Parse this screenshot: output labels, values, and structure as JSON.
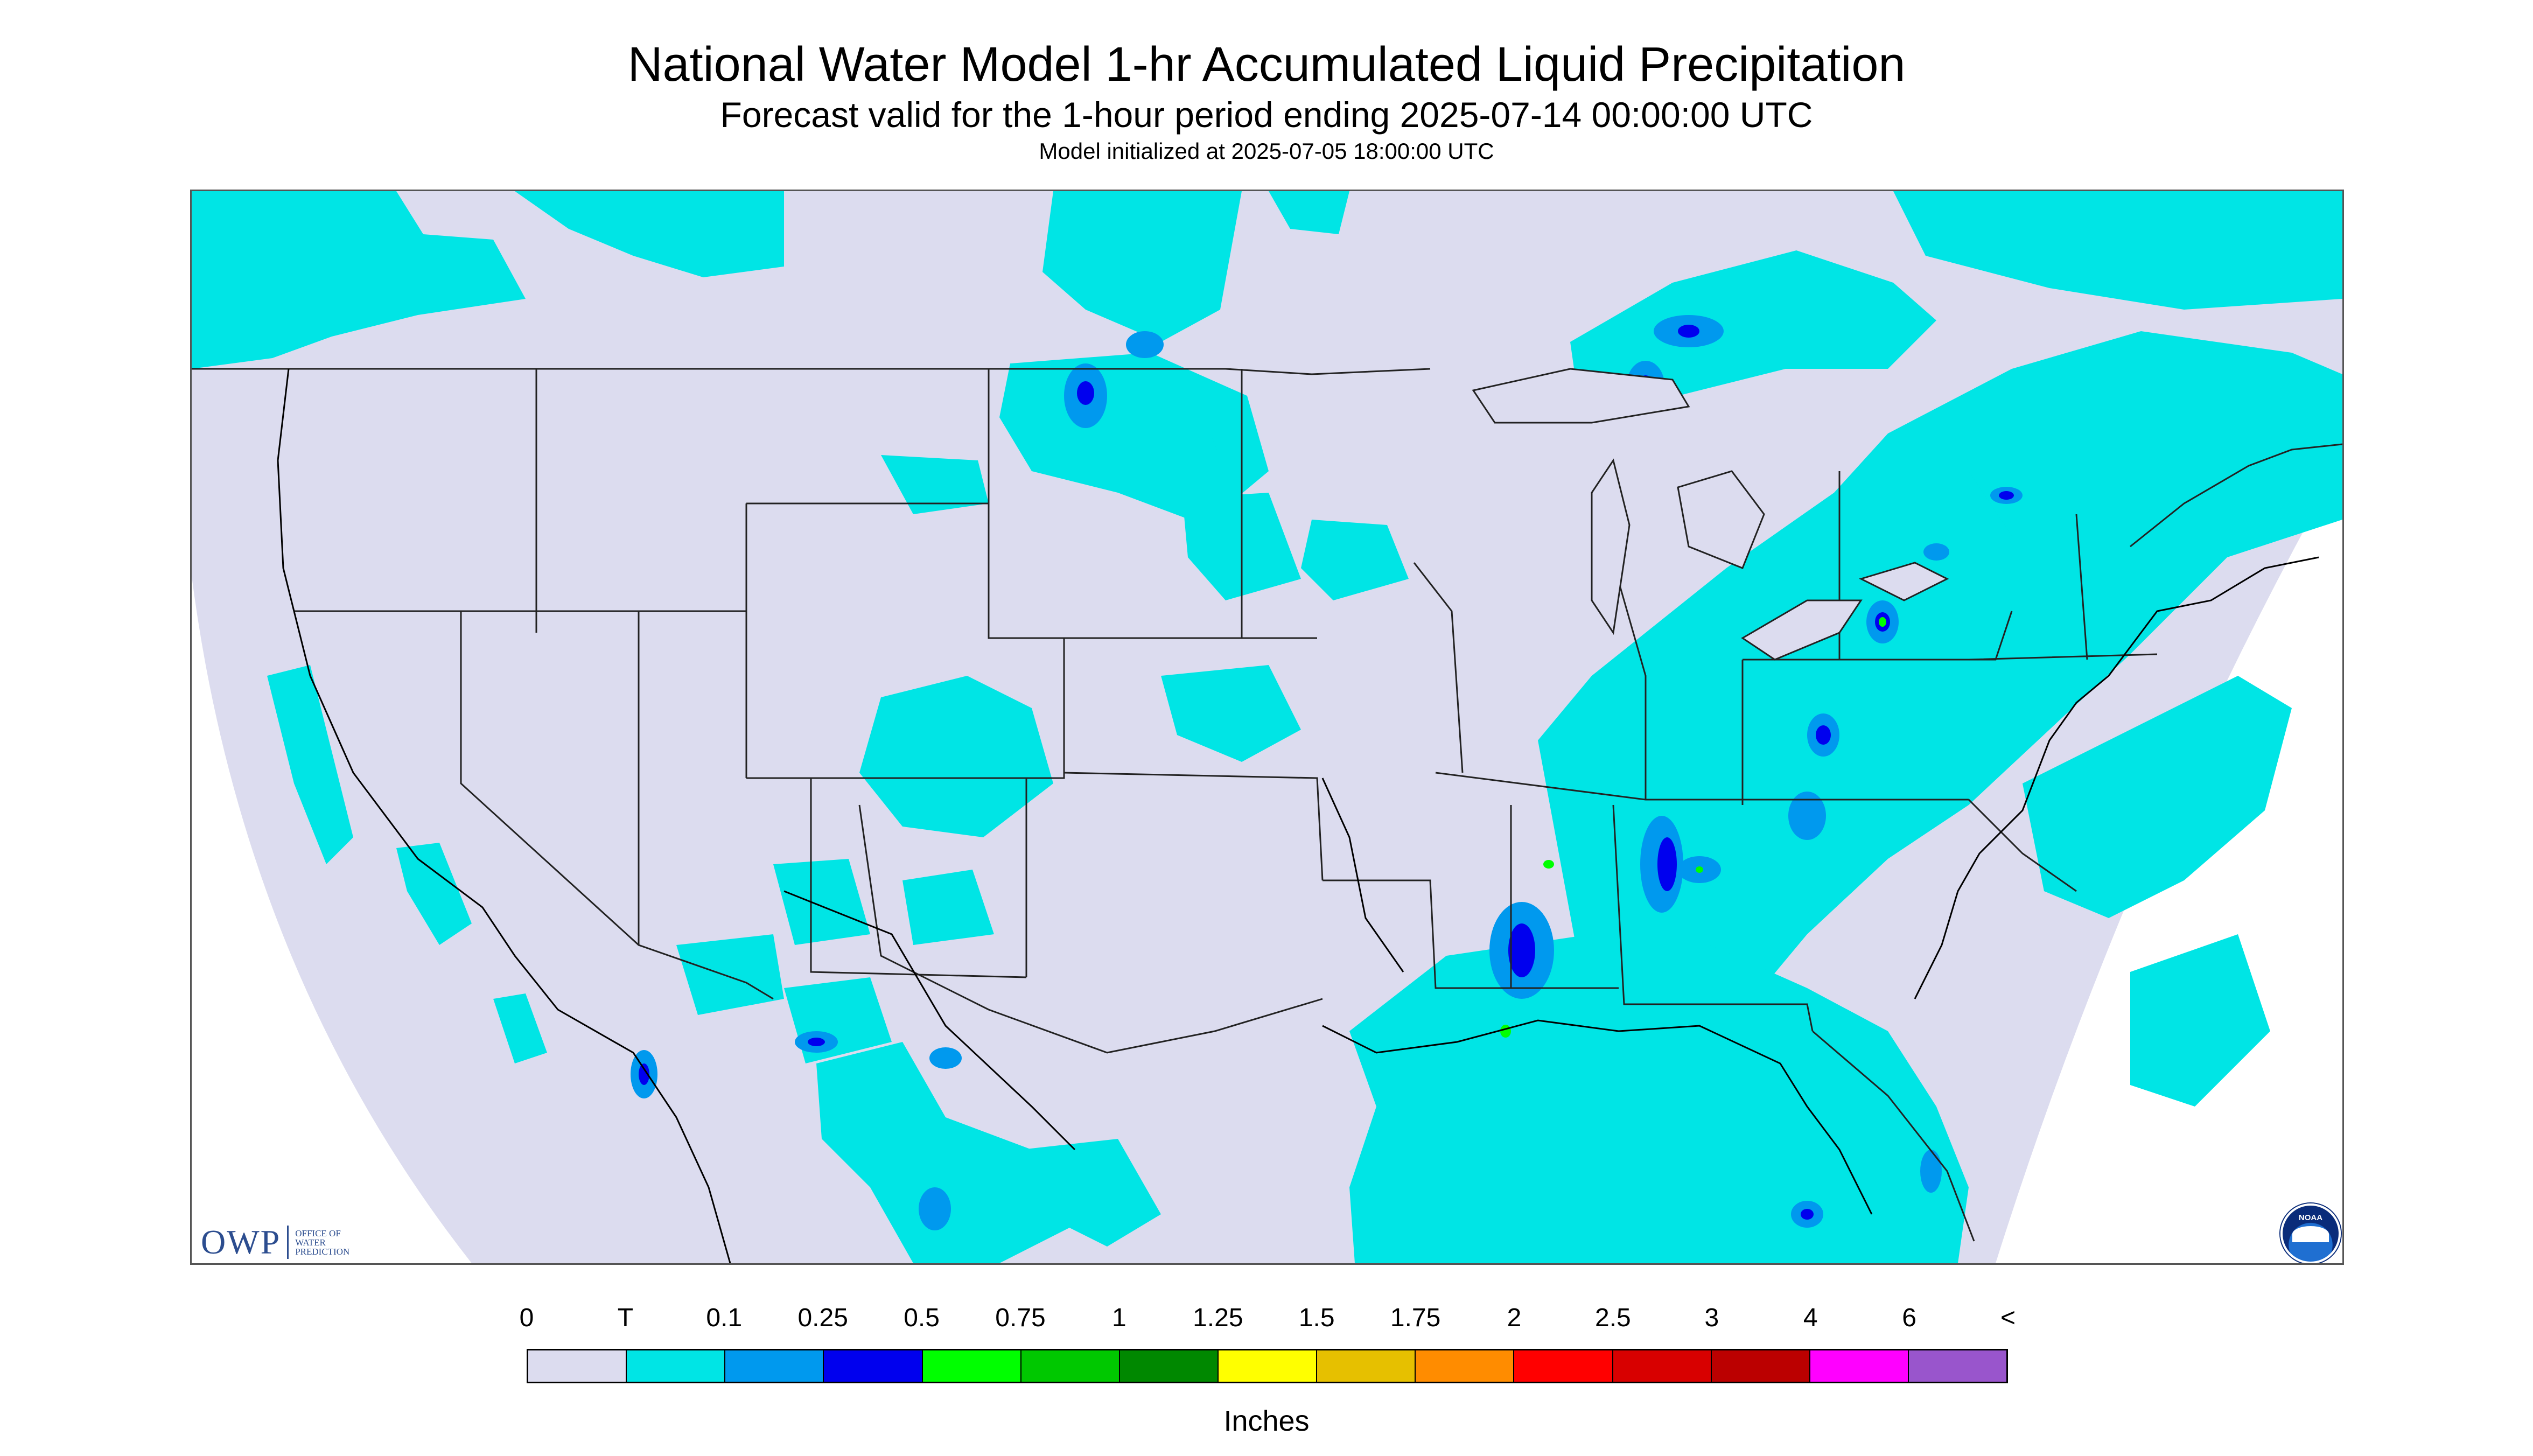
{
  "title": "National Water Model 1-hr Accumulated Liquid Precipitation",
  "subtitle": "Forecast valid for the 1-hour period ending 2025-07-14 00:00:00 UTC",
  "initialized": "Model initialized at 2025-07-05 18:00:00 UTC",
  "map": {
    "background_color": "#dcdcef",
    "outside_color": "#ffffff",
    "boundary_color": "#222222"
  },
  "logos": {
    "owp": {
      "letters": "OWP",
      "line1": "Office of",
      "line2": "Water",
      "line3": "Prediction"
    },
    "noaa": {
      "text": "NOAA"
    }
  },
  "legend": {
    "labels": [
      "0",
      "T",
      "0.1",
      "0.25",
      "0.5",
      "0.75",
      "1",
      "1.25",
      "1.5",
      "1.75",
      "2",
      "2.5",
      "3",
      "4",
      "6",
      "<"
    ],
    "colors": [
      "#dcdcef",
      "#00e5e5",
      "#0099ee",
      "#0000ee",
      "#00ff00",
      "#00c800",
      "#008800",
      "#ffff00",
      "#e6c000",
      "#ff8c00",
      "#ff0000",
      "#d80000",
      "#bb0000",
      "#ff00ff",
      "#9955cc"
    ],
    "units": "Inches"
  }
}
